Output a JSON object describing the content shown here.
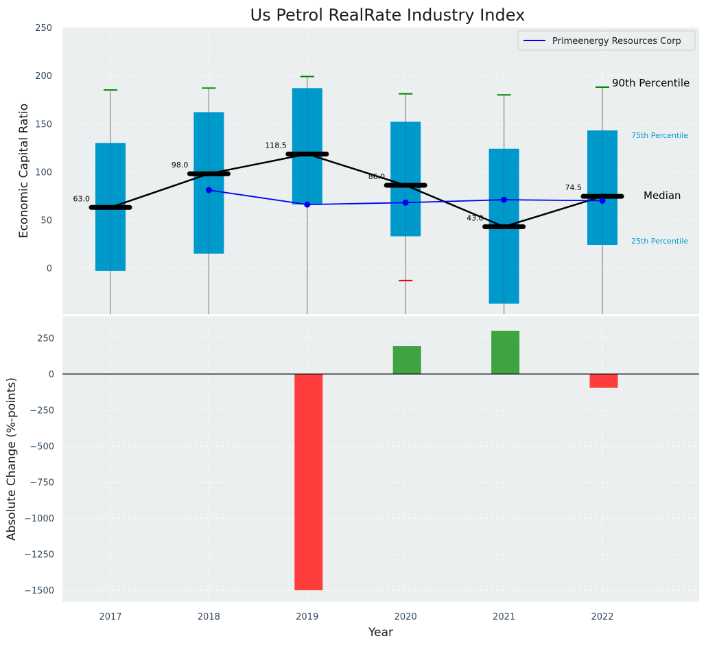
{
  "title": "Us Petrol RealRate Industry Index",
  "colors": {
    "plot_bg": "#ebeff0",
    "box": "#0099cc",
    "company": "#0000ee",
    "median": "#000000",
    "whisker": "#888888",
    "positive": "#2e9a2e",
    "negative": "#ff3333",
    "p90_cap": "#008800",
    "p10_cap": "#ee0000",
    "annotation_box_label": "#0099cc"
  },
  "chart_data": [
    {
      "type": "box",
      "ylabel": "Economic Capital Ratio",
      "ylim": [
        -48,
        250
      ],
      "yticks": [
        0,
        50,
        100,
        150,
        200,
        250
      ],
      "categories": [
        "2017",
        "2018",
        "2019",
        "2020",
        "2021",
        "2022"
      ],
      "p25": [
        -3,
        15,
        66,
        33,
        -37,
        24
      ],
      "p75": [
        130,
        162,
        187,
        152,
        124,
        143
      ],
      "median": [
        63.0,
        98.0,
        118.5,
        86.0,
        43.0,
        74.5
      ],
      "median_labels": [
        "63.0",
        "98.0",
        "118.5",
        "86.0",
        "43.0",
        "74.5"
      ],
      "p90": [
        185,
        187,
        199,
        181,
        180,
        188
      ],
      "p10": [
        null,
        null,
        null,
        -13,
        null,
        null
      ],
      "series": [
        {
          "name": "Primeenergy Resources Corp",
          "x": [
            "2018",
            "2019",
            "2020",
            "2021",
            "2022"
          ],
          "values": [
            81,
            66,
            68,
            71,
            70
          ]
        }
      ],
      "legend": "top-right",
      "annotations": {
        "p90": "90th Percentile",
        "p75": "75th Percentile",
        "median": "Median",
        "p25": "25th Percentile"
      },
      "grid": true
    },
    {
      "type": "bar",
      "xlabel": "Year",
      "ylabel": "Absolute Change (%-points)",
      "ylim": [
        -1580,
        400
      ],
      "yticks": [
        -1500,
        -1250,
        -1000,
        -750,
        -500,
        -250,
        0,
        250
      ],
      "ytick_labels": [
        "−1500",
        "−1250",
        "−1000",
        "−750",
        "−500",
        "−250",
        "0",
        "250"
      ],
      "categories": [
        "2017",
        "2018",
        "2019",
        "2020",
        "2021",
        "2022"
      ],
      "values": [
        0,
        0,
        -1500,
        195,
        300,
        -95
      ],
      "grid": true
    }
  ]
}
